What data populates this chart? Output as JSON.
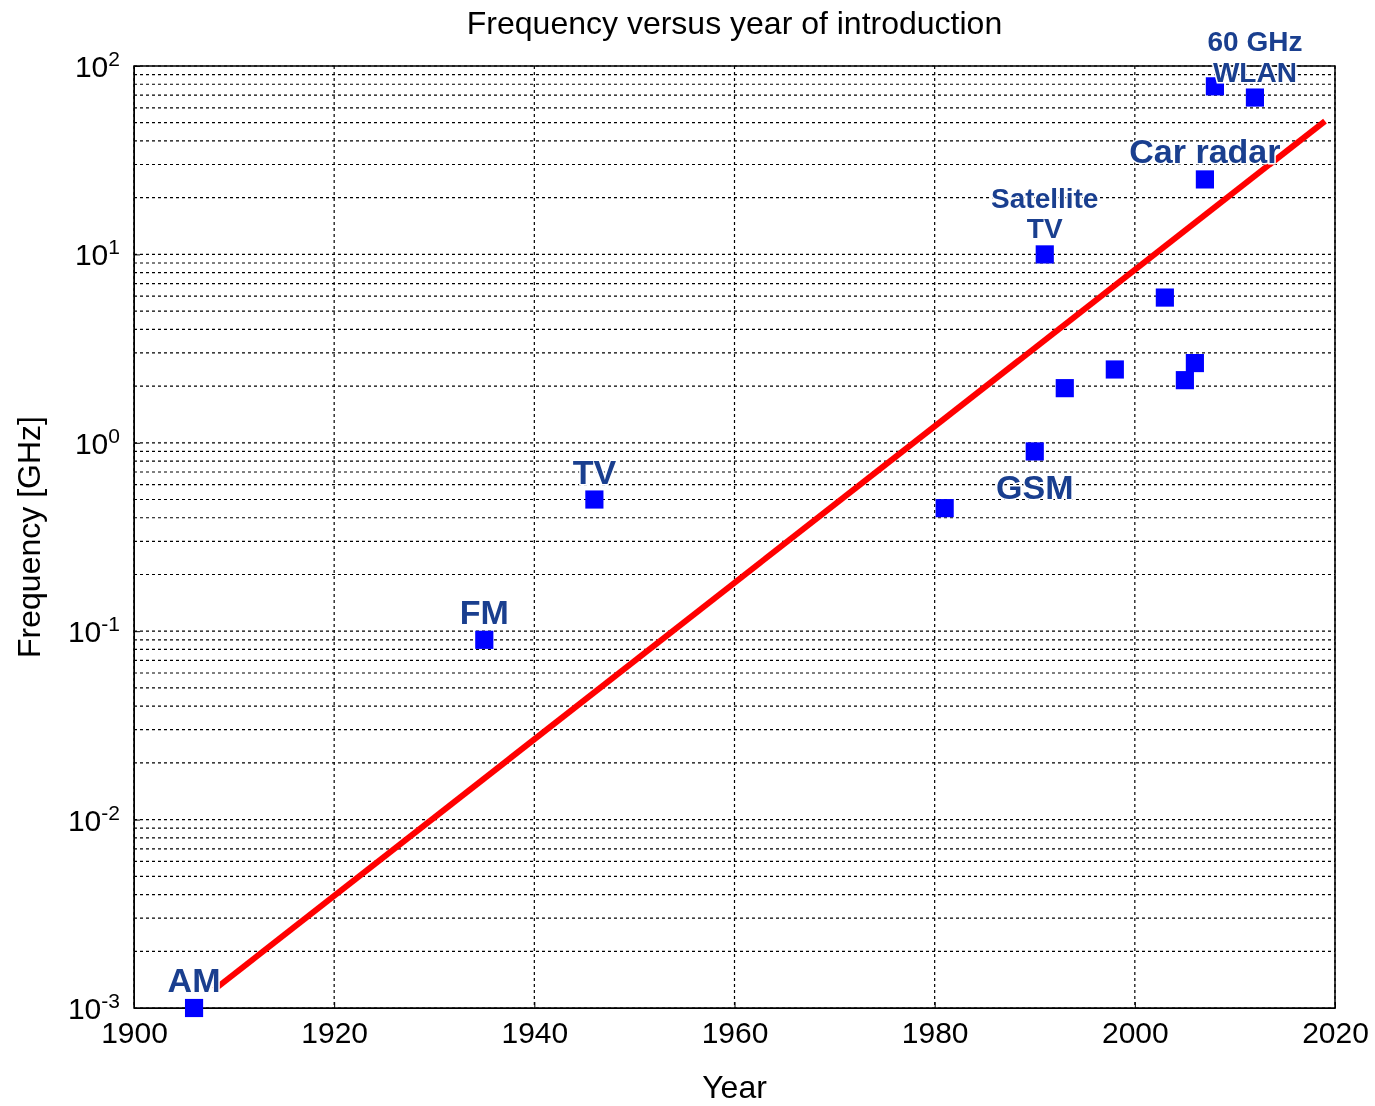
{
  "chart_data": {
    "type": "scatter",
    "title": "Frequency versus year of introduction",
    "xlabel": "Year",
    "ylabel": "Frequency [GHz]",
    "xlim": [
      1900,
      2020
    ],
    "xticks": [
      1900,
      1920,
      1940,
      1960,
      1980,
      2000,
      2020
    ],
    "ylim": [
      0.001,
      100
    ],
    "yticks": [
      {
        "value": 0.001,
        "label": "10$^{-3}$"
      },
      {
        "value": 0.01,
        "label": "10$^{-2}$"
      },
      {
        "value": 0.1,
        "label": "10$^{-1}$"
      },
      {
        "value": 1,
        "label": "10$^{0}$"
      },
      {
        "value": 10,
        "label": "10$^{1}$"
      },
      {
        "value": 100,
        "label": "10$^{2}$"
      }
    ],
    "log": "y",
    "grid": true,
    "series": [
      {
        "marker": "square",
        "color": "#0000ff",
        "x": [
          1906,
          1935,
          1946,
          1981,
          1990,
          1991,
          1993,
          1998,
          2003,
          2005,
          2006,
          2007,
          2008,
          2012
        ],
        "values": [
          0.001,
          0.09,
          0.5,
          0.45,
          0.9,
          10,
          1.95,
          2.45,
          5.9,
          2.15,
          2.65,
          25,
          78,
          68
        ]
      },
      {
        "type": "line",
        "color": "#ff0000",
        "x": [
          1908,
          2019
        ],
        "values": [
          0.00125,
          51
        ]
      }
    ],
    "annotations": [
      {
        "text": "AM",
        "x": 1906,
        "y": 0.001
      },
      {
        "text": "FM",
        "x": 1935,
        "y": 0.09
      },
      {
        "text": "TV",
        "x": 1946,
        "y": 0.5
      },
      {
        "text": "GSM",
        "x": 1990,
        "y": 0.9
      },
      {
        "text": "Satellite\nTV",
        "x": 1991,
        "y": 10
      },
      {
        "text": "Car radar",
        "x": 2007,
        "y": 25
      },
      {
        "text": "60 GHz\nWLAN",
        "x": 2012,
        "y": 68
      }
    ]
  }
}
